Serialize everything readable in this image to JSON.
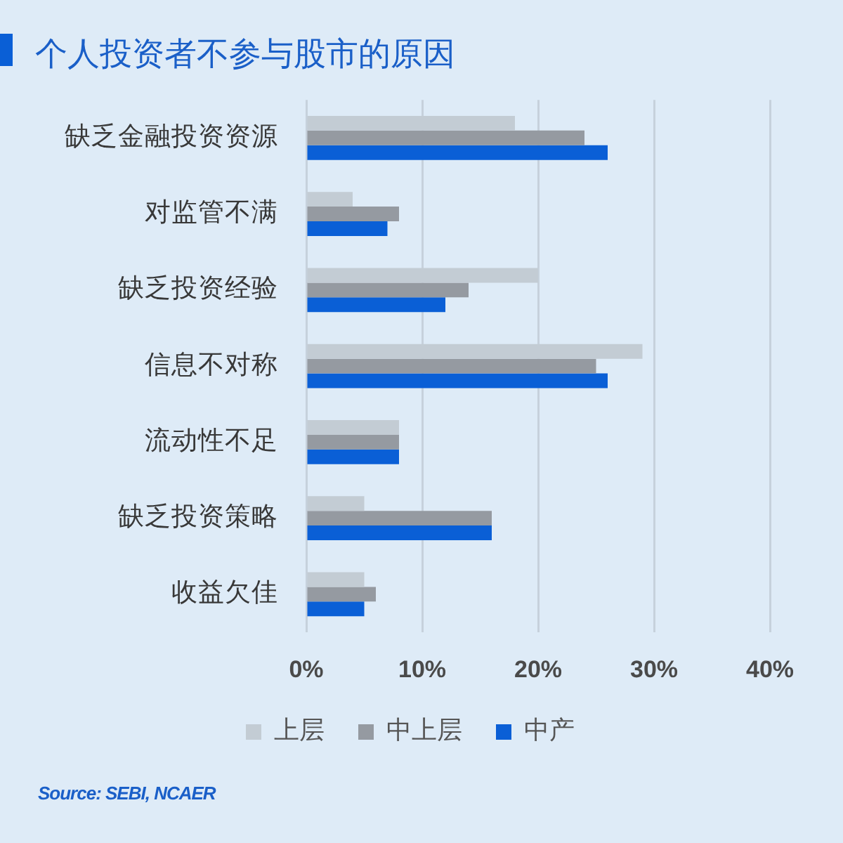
{
  "chart_data": {
    "type": "bar",
    "orientation": "horizontal",
    "title": "个人投资者不参与股市的原因",
    "categories": [
      "缺乏金融投资资源",
      "对监管不满",
      "缺乏投资经验",
      "信息不对称",
      "流动性不足",
      "缺乏投资策略",
      "收益欠佳"
    ],
    "series": [
      {
        "name": "上层",
        "color": "#c3ccd4",
        "values": [
          18,
          4,
          20,
          29,
          8,
          5,
          5
        ]
      },
      {
        "name": "中上层",
        "color": "#959aa1",
        "values": [
          24,
          8,
          14,
          25,
          8,
          16,
          6
        ]
      },
      {
        "name": "中产",
        "color": "#0a5fd6",
        "values": [
          26,
          7,
          12,
          26,
          8,
          16,
          5
        ]
      }
    ],
    "xlim": [
      0,
      40
    ],
    "xticks": [
      {
        "value": 0,
        "label": "0%"
      },
      {
        "value": 10,
        "label": "10%"
      },
      {
        "value": 20,
        "label": "20%"
      },
      {
        "value": 30,
        "label": "30%"
      },
      {
        "value": 40,
        "label": "40%"
      }
    ],
    "grid": "x",
    "legend": "bottom",
    "annotations": [
      "Source: SEBI, NCAER"
    ]
  }
}
